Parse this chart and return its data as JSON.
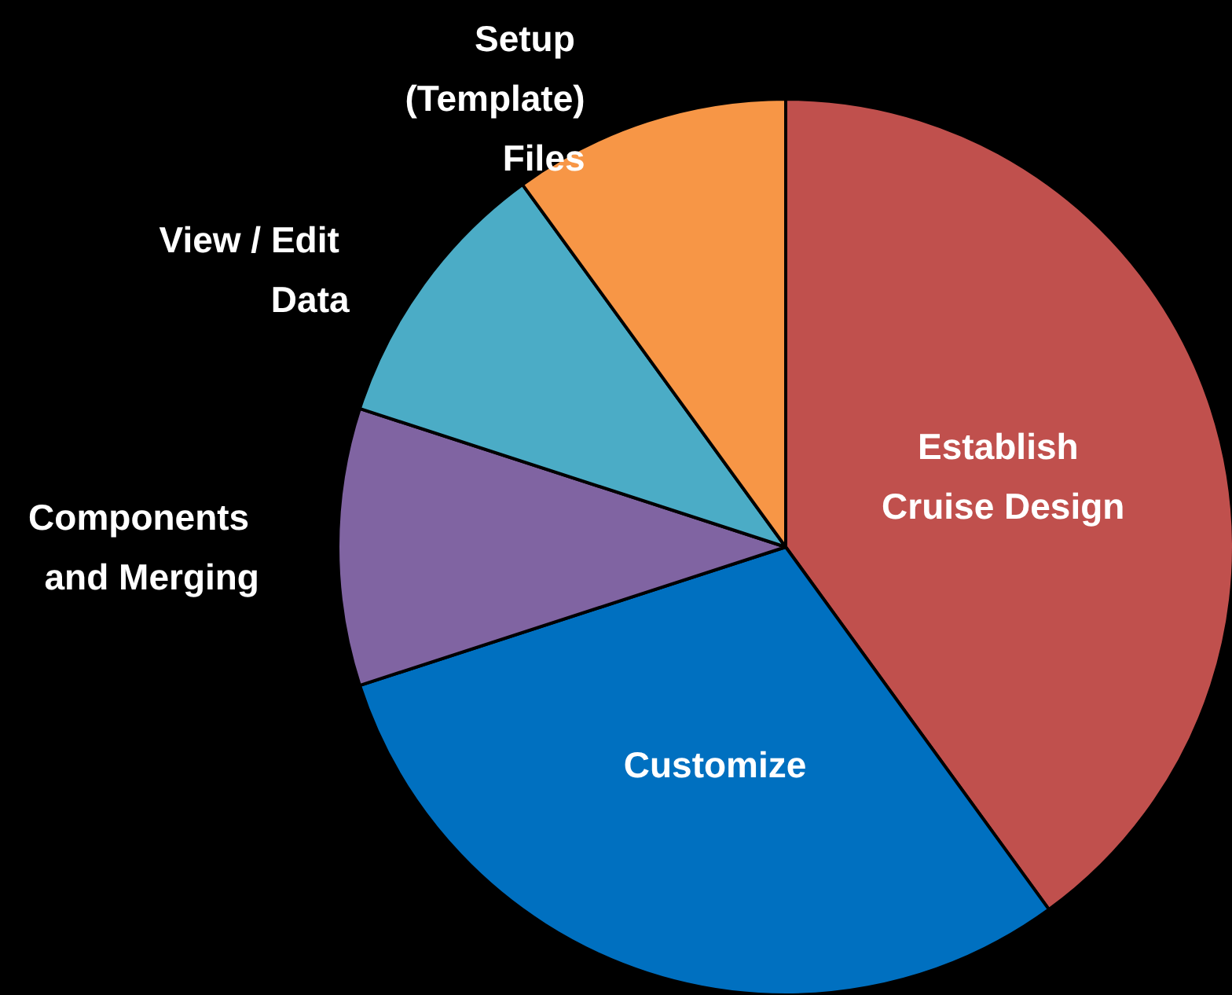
{
  "chart_data": {
    "type": "pie",
    "categories": [
      "Establish Cruise Design",
      "Customize",
      "Components and Merging",
      "View / Edit Data",
      "Setup (Template) Files"
    ],
    "values": [
      40,
      30,
      10,
      10,
      10
    ],
    "colors": [
      "#c0504d",
      "#0070c0",
      "#8064a2",
      "#4bacc6",
      "#f79646"
    ],
    "legend": false
  }
}
